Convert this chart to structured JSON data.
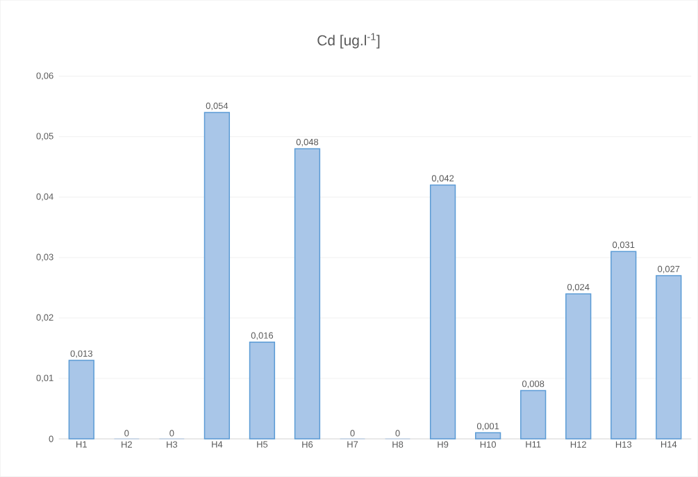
{
  "chart_data": {
    "type": "bar",
    "title": "Cd [ug.l$^{-1}$]",
    "categories": [
      "H1",
      "H2",
      "H3",
      "H4",
      "H5",
      "H6",
      "H7",
      "H8",
      "H9",
      "H10",
      "H11",
      "H12",
      "H13",
      "H14"
    ],
    "values": [
      0.013,
      0,
      0,
      0.054,
      0.016,
      0.048,
      0,
      0,
      0.042,
      0.001,
      0.008,
      0.024,
      0.031,
      0.027
    ],
    "value_labels": [
      "0,013",
      "0",
      "0",
      "0,054",
      "0,016",
      "0,048",
      "0",
      "0",
      "0,042",
      "0,001",
      "0,008",
      "0,024",
      "0,031",
      "0,027"
    ],
    "color": "#a9c6e8",
    "ylim": [
      0,
      0.06
    ],
    "yticks": [
      {
        "value": 0,
        "label": "0"
      },
      {
        "value": 0.01,
        "label": "0,01"
      },
      {
        "value": 0.02,
        "label": "0,02"
      },
      {
        "value": 0.03,
        "label": "0,03"
      },
      {
        "value": 0.04,
        "label": "0,04"
      },
      {
        "value": 0.05,
        "label": "0,05"
      },
      {
        "value": 0.06,
        "label": "0,06"
      }
    ],
    "grid": "y"
  }
}
